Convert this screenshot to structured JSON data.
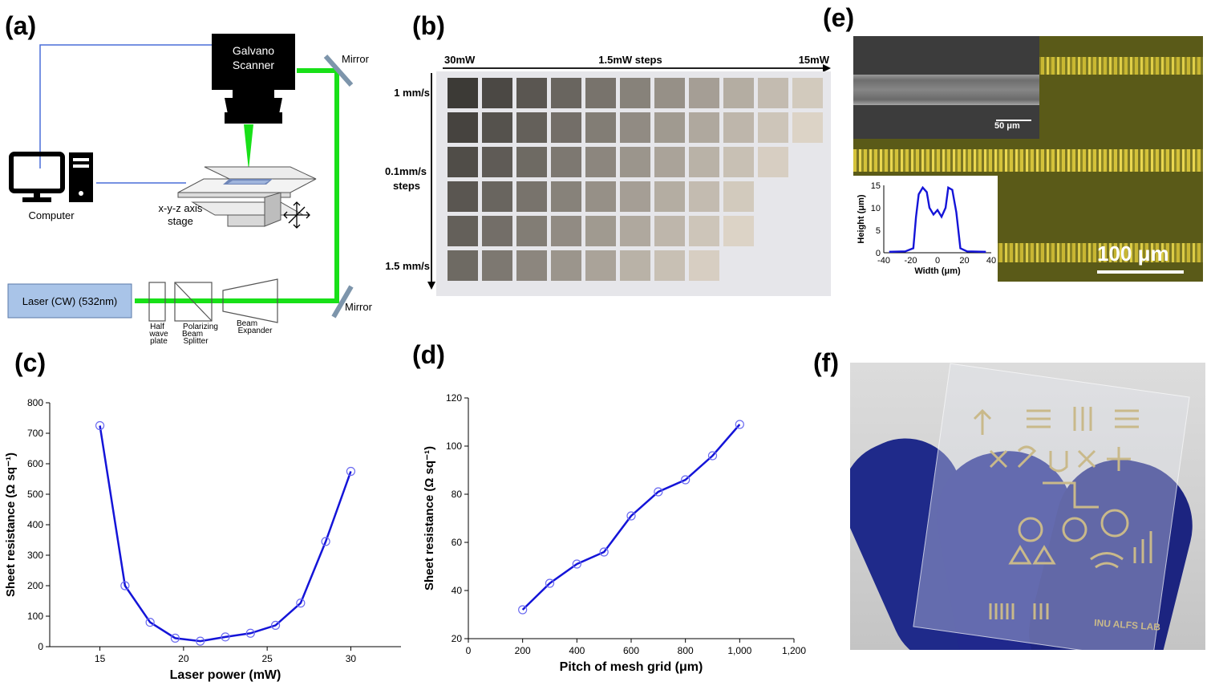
{
  "labels": {
    "a": "(a)",
    "b": "(b)",
    "c": "(c)",
    "d": "(d)",
    "e": "(e)",
    "f": "(f)"
  },
  "setup": {
    "galvano": "Galvano",
    "scanner": "Scanner",
    "mirror_top": "Mirror",
    "mirror_bottom": "Mirror",
    "computer": "Computer",
    "stage_line1": "x-y-z axis",
    "stage_line2": "stage",
    "laser": "Laser (CW)  (532nm)",
    "half_wave": [
      "Half",
      "wave",
      "plate"
    ],
    "pbs": [
      "Polarizing",
      "Beam",
      "Splitter"
    ],
    "expander": [
      "Beam",
      "Expander"
    ],
    "colors": {
      "beam": "#18e018",
      "wire": "#4a6fd8",
      "laser_box": "#a9c4e8"
    }
  },
  "grid_sample": {
    "top_left": "30mW",
    "top_mid": "1.5mW steps",
    "top_right": "15mW",
    "speed_top": "1 mm/s",
    "speed_mid1": "0.1mm/s",
    "speed_mid2": "steps",
    "speed_bottom": "1.5 mm/s",
    "rows": 6,
    "cols": 11,
    "row_lengths": [
      11,
      11,
      10,
      9,
      9,
      8
    ]
  },
  "microscope": {
    "sem_scale": "50 μm",
    "scale": "100 μm",
    "inset": {
      "ylabel": "Height (μm)",
      "xlabel": "Width (μm)",
      "xticks": [
        "-40",
        "-20",
        "0",
        "20",
        "40"
      ],
      "yticks": [
        "0",
        "5",
        "10",
        "15"
      ]
    }
  },
  "photo_f": {
    "lab_text": "INU ALFS LAB"
  },
  "chart_data": [
    {
      "type": "line",
      "title": "",
      "xlabel": "Laser power (mW)",
      "ylabel": "Sheet resistance (Ω sq⁻¹)",
      "x": [
        15,
        16.5,
        18,
        19.5,
        21,
        22.5,
        24,
        25.5,
        27,
        28.5,
        30
      ],
      "values": [
        725,
        200,
        80,
        28,
        18,
        32,
        44,
        70,
        143,
        345,
        575
      ],
      "xlim": [
        12,
        33
      ],
      "ylim": [
        0,
        800
      ],
      "xticks": [
        "15",
        "20",
        "25",
        "30"
      ],
      "yticks": [
        "0",
        "100",
        "200",
        "300",
        "400",
        "500",
        "600",
        "700",
        "800"
      ],
      "color": "#1414d8"
    },
    {
      "type": "line",
      "title": "",
      "xlabel": "Pitch of mesh grid (μm)",
      "ylabel": "Sheet resistance (Ω sq⁻¹)",
      "x": [
        200,
        300,
        400,
        500,
        600,
        700,
        800,
        900,
        1000
      ],
      "values": [
        32,
        43,
        51,
        56,
        71,
        81,
        86,
        96,
        109
      ],
      "xlim": [
        0,
        1200
      ],
      "ylim": [
        20,
        120
      ],
      "xticks": [
        "0",
        "200",
        "400",
        "600",
        "800",
        "1,000",
        "1,200"
      ],
      "yticks": [
        "20",
        "40",
        "60",
        "80",
        "100",
        "120"
      ],
      "color": "#1414d8"
    }
  ]
}
